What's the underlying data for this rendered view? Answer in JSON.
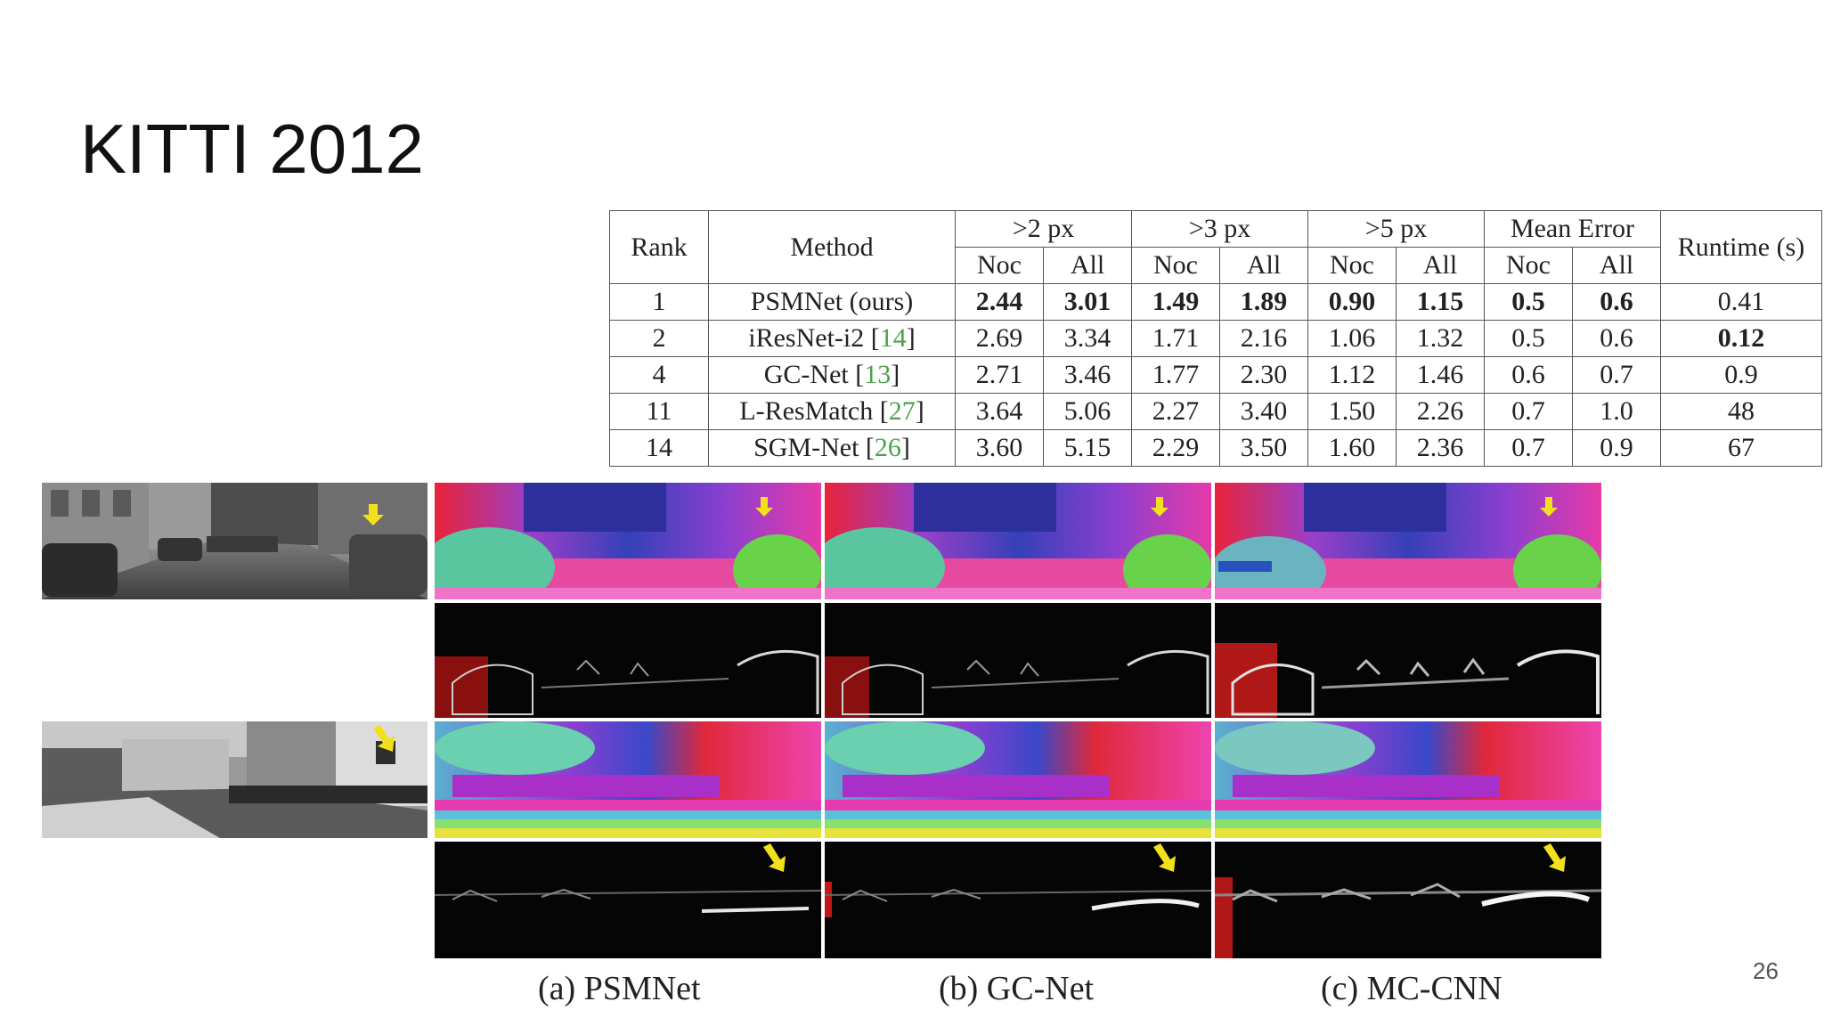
{
  "slide": {
    "title": "KITTI 2012",
    "page_number": "26"
  },
  "table": {
    "headers": {
      "rank": "Rank",
      "method": "Method",
      "groups": [
        ">2 px",
        ">3 px",
        ">5 px",
        "Mean Error"
      ],
      "runtime": "Runtime (s)",
      "sub": [
        "Noc",
        "All"
      ]
    },
    "rows": [
      {
        "rank": "1",
        "method": "PSMNet (ours)",
        "cite": "",
        "values": [
          "2.44",
          "3.01",
          "1.49",
          "1.89",
          "0.90",
          "1.15",
          "0.5",
          "0.6"
        ],
        "runtime": "0.41"
      },
      {
        "rank": "2",
        "method": "iResNet-i2 ",
        "cite": "14",
        "values": [
          "2.69",
          "3.34",
          "1.71",
          "2.16",
          "1.06",
          "1.32",
          "0.5",
          "0.6"
        ],
        "runtime": "0.12"
      },
      {
        "rank": "4",
        "method": "GC-Net ",
        "cite": "13",
        "values": [
          "2.71",
          "3.46",
          "1.77",
          "2.30",
          "1.12",
          "1.46",
          "0.6",
          "0.7"
        ],
        "runtime": "0.9"
      },
      {
        "rank": "11",
        "method": "L-ResMatch ",
        "cite": "27",
        "values": [
          "3.64",
          "5.06",
          "2.27",
          "3.40",
          "1.50",
          "2.26",
          "0.7",
          "1.0"
        ],
        "runtime": "48"
      },
      {
        "rank": "14",
        "method": "SGM-Net ",
        "cite": "26",
        "values": [
          "3.60",
          "5.15",
          "2.29",
          "3.50",
          "1.60",
          "2.36",
          "0.7",
          "0.9"
        ],
        "runtime": "67"
      }
    ]
  },
  "figure": {
    "captions": [
      "(a) PSMNet",
      "(b) GC-Net",
      "(c) MC-CNN"
    ]
  },
  "colors": {
    "arrow": "#f2e01c",
    "cite": "#4aa34a"
  }
}
